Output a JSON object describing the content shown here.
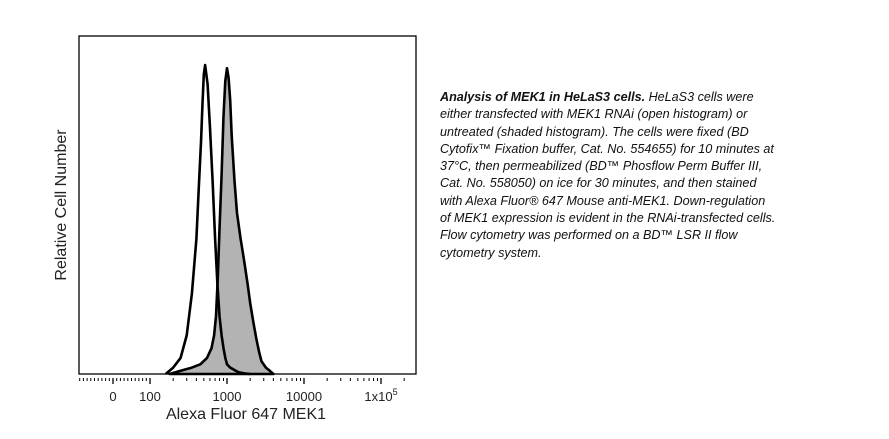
{
  "chart_data": {
    "type": "area",
    "xlabel": "Alexa Fluor 647 MEK1",
    "ylabel": "Relative Cell Number",
    "x_scale": "biexponential",
    "xlim": [
      -120,
      200000
    ],
    "ylim": [
      0,
      1.05
    ],
    "x_ticks": [
      {
        "value": 0,
        "label": "0"
      },
      {
        "value": 100,
        "label": "100"
      },
      {
        "value": 1000,
        "label": "1000"
      },
      {
        "value": 10000,
        "label": "10000"
      },
      {
        "value": 100000,
        "label": "1x10",
        "superscript": "5"
      }
    ],
    "grid": false,
    "legend": "none",
    "series": [
      {
        "style": "open",
        "stroke": "#000000",
        "fill": "none",
        "x": [
          160,
          200,
          250,
          300,
          350,
          400,
          430,
          460,
          480,
          500,
          520,
          560,
          600,
          650,
          700,
          750,
          800,
          850,
          900,
          950,
          1000,
          1100,
          1200,
          1300,
          1400,
          1500,
          1700,
          2000
        ],
        "y": [
          0.0,
          0.02,
          0.05,
          0.12,
          0.25,
          0.42,
          0.58,
          0.72,
          0.84,
          0.93,
          0.96,
          0.9,
          0.77,
          0.6,
          0.42,
          0.28,
          0.18,
          0.12,
          0.08,
          0.05,
          0.03,
          0.02,
          0.015,
          0.01,
          0.006,
          0.004,
          0.002,
          0.0
        ]
      },
      {
        "style": "shaded",
        "stroke": "#000000",
        "fill": "#b3b3b3",
        "x": [
          180,
          250,
          350,
          450,
          550,
          630,
          680,
          720,
          760,
          800,
          850,
          900,
          950,
          1000,
          1050,
          1100,
          1150,
          1250,
          1350,
          1500,
          1600,
          1700,
          1850,
          2000,
          2200,
          2400,
          2600,
          2800,
          3200,
          3600,
          4000
        ],
        "y": [
          0.0,
          0.01,
          0.02,
          0.03,
          0.05,
          0.08,
          0.12,
          0.18,
          0.3,
          0.45,
          0.62,
          0.8,
          0.91,
          0.95,
          0.92,
          0.85,
          0.74,
          0.6,
          0.5,
          0.42,
          0.38,
          0.34,
          0.28,
          0.22,
          0.16,
          0.11,
          0.07,
          0.04,
          0.02,
          0.01,
          0.0
        ]
      }
    ]
  },
  "caption": {
    "lines": [
      {
        "bold": "Analysis of MEK1 in HeLaS3 cells.",
        "text": "  HeLaS3 cells were"
      },
      {
        "text": "either transfected with MEK1 RNAi (open histogram) or"
      },
      {
        "text": "untreated (shaded histogram).  The cells were fixed (BD"
      },
      {
        "text": "Cytofix™ Fixation buffer, Cat. No. 554655) for 10 minutes at"
      },
      {
        "text": "37°C, then permeabilized (BD™ Phosflow Perm Buffer III,"
      },
      {
        "text": "Cat. No. 558050) on ice for 30 minutes, and then stained"
      },
      {
        "text": "with Alexa Fluor® 647 Mouse anti-MEK1.  Down-regulation"
      },
      {
        "text": "of MEK1 expression is evident in the RNAi-transfected cells."
      },
      {
        "text": "Flow cytometry was performed on a BD™ LSR II flow"
      },
      {
        "text": "cytometry system."
      }
    ]
  }
}
